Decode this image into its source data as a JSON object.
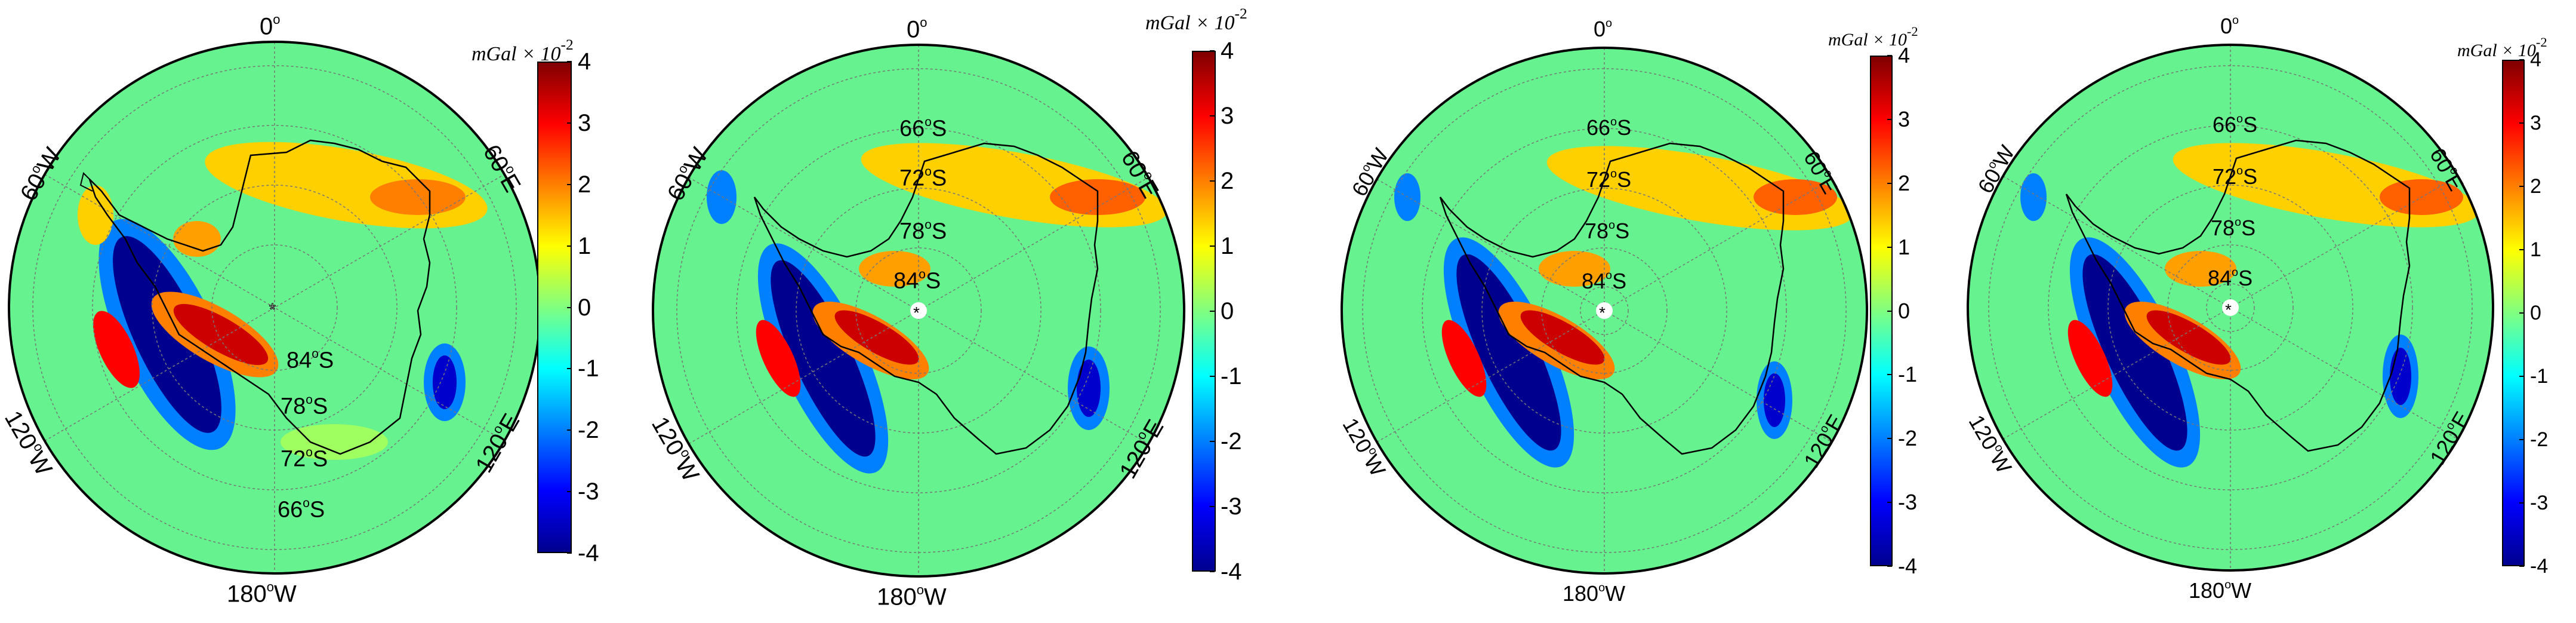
{
  "colormap": [
    "#00008f",
    "#0000ff",
    "#0080ff",
    "#00ffff",
    "#80ff80",
    "#ffff00",
    "#ff8000",
    "#ff0000",
    "#800000"
  ],
  "colorbar": {
    "unit": "mGal",
    "scale": "× 10",
    "scale_exp": "-2",
    "ticks": [
      "4",
      "3",
      "2",
      "1",
      "0",
      "-1",
      "-2",
      "-3",
      "-4"
    ]
  },
  "panels": [
    {
      "id": "p1",
      "top_label": "0",
      "bottom_label": "180",
      "bottom_suffix": "W",
      "left_upper": "60",
      "left_upper_suffix": "W",
      "left_lower": "120",
      "left_lower_suffix": "W",
      "right_upper": "60",
      "right_upper_suffix": "E",
      "right_lower": "120",
      "right_lower_suffix": "E",
      "lat_labels": [
        "84",
        "78",
        "72",
        "66"
      ],
      "lat_suffix": "S"
    },
    {
      "id": "p2",
      "top_label": "0",
      "bottom_label": "180",
      "bottom_suffix": "W",
      "left_upper": "60",
      "left_upper_suffix": "W",
      "left_lower": "120",
      "left_lower_suffix": "W",
      "right_upper": "60",
      "right_upper_suffix": "E",
      "right_lower": "120",
      "right_lower_suffix": "E",
      "lat_labels": [
        "66",
        "72",
        "78",
        "84"
      ],
      "lat_suffix": "S"
    },
    {
      "id": "p3",
      "top_label": "0",
      "bottom_label": "180",
      "bottom_suffix": "W",
      "left_upper": "60",
      "left_upper_suffix": "W",
      "left_lower": "120",
      "left_lower_suffix": "W",
      "right_upper": "60",
      "right_upper_suffix": "E",
      "right_lower": "120",
      "right_lower_suffix": "E",
      "lat_labels": [
        "66",
        "72",
        "78",
        "84"
      ],
      "lat_suffix": "S"
    },
    {
      "id": "p4",
      "top_label": "0",
      "bottom_label": "180",
      "bottom_suffix": "W",
      "left_upper": "60",
      "left_upper_suffix": "W",
      "left_lower": "120",
      "left_lower_suffix": "W",
      "right_upper": "60",
      "right_upper_suffix": "E",
      "right_lower": "120",
      "right_lower_suffix": "E",
      "lat_labels": [
        "66",
        "72",
        "78",
        "84"
      ],
      "lat_suffix": "S"
    }
  ]
}
